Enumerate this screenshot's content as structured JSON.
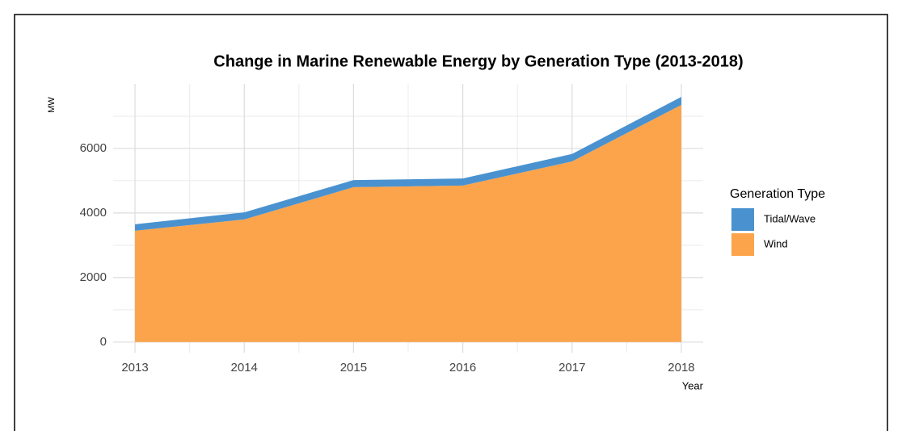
{
  "chart_data": {
    "type": "area",
    "title": "Change in Marine Renewable Energy by Generation Type (2013-2018)",
    "x_label": "Year",
    "y_label": "MW",
    "x": [
      2013,
      2014,
      2015,
      2016,
      2017,
      2018
    ],
    "series": [
      {
        "name": "Wind",
        "color": "#fca44c",
        "values": [
          3450,
          3800,
          4800,
          4850,
          5600,
          7350
        ]
      },
      {
        "name": "Tidal/Wave",
        "color": "#4a92cf",
        "values": [
          200,
          220,
          220,
          220,
          230,
          250
        ]
      }
    ],
    "stacked": true,
    "xlim": [
      2012.8,
      2018.2
    ],
    "xticks": [
      2013,
      2014,
      2015,
      2016,
      2017,
      2018
    ],
    "ylim": [
      -330,
      8000
    ],
    "yticks": [
      0,
      2000,
      4000,
      6000
    ],
    "grid": true,
    "legend": {
      "title": "Generation Type",
      "position": "right"
    }
  }
}
